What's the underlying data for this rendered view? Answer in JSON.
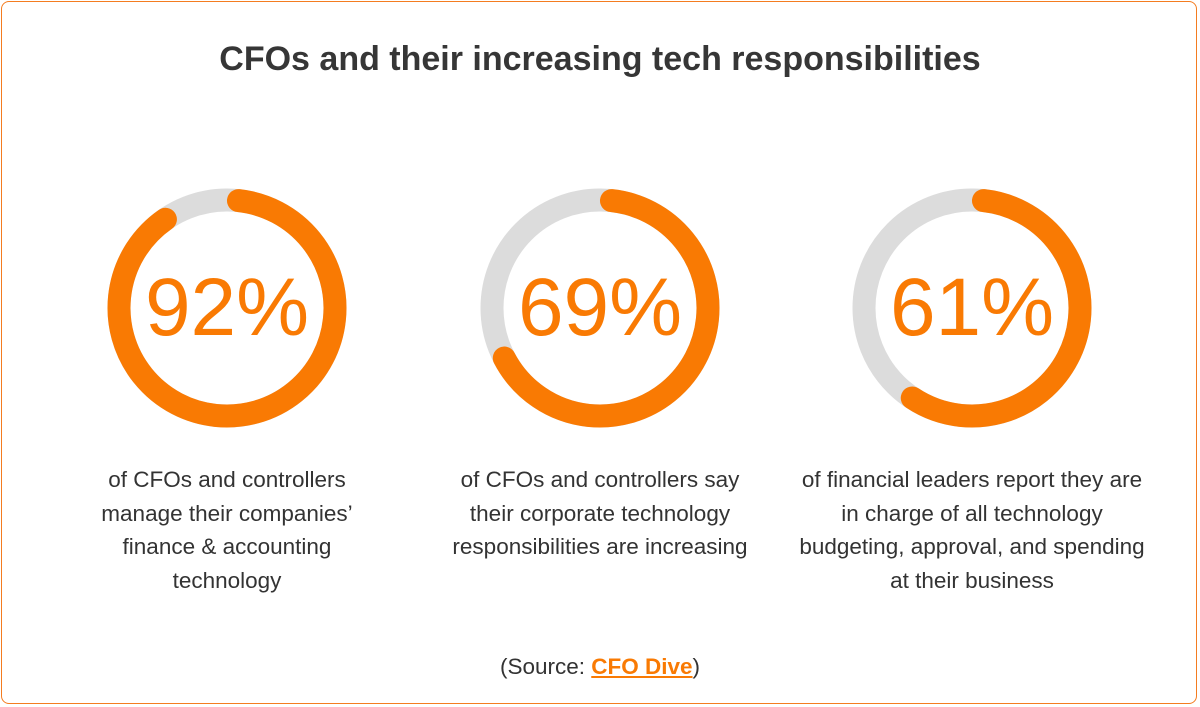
{
  "title": "CFOs and their increasing tech responsibilities",
  "colors": {
    "accent": "#f97a03",
    "track": "#dcdcdc",
    "text": "#333333"
  },
  "chart_data": {
    "type": "pie",
    "style": "donut",
    "items": [
      {
        "value": 92,
        "label": "92%",
        "caption": "of CFOs and controllers manage their companies’ finance & accounting technology"
      },
      {
        "value": 69,
        "label": "69%",
        "caption": "of CFOs and controllers say their corporate technology responsibilities are increasing"
      },
      {
        "value": 61,
        "label": "61%",
        "caption": "of financial leaders report they are in charge of all technology budgeting, approval, and spending at their business"
      }
    ]
  },
  "source": {
    "prefix": "(Source: ",
    "link": "CFO Dive",
    "suffix": ")"
  }
}
